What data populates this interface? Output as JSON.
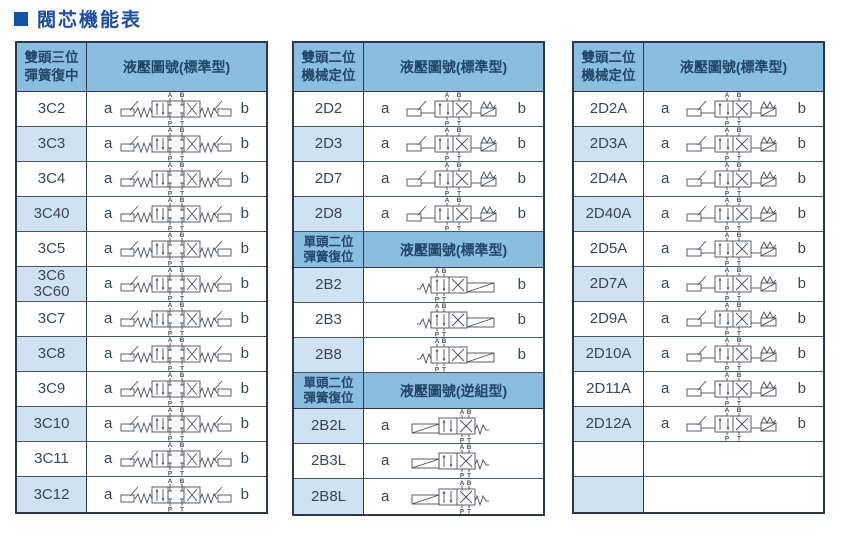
{
  "page_title": "閥芯機能表",
  "colors": {
    "title": "#1d4fa1",
    "title_bullet": "#1454a8",
    "header_bg": "#8abdde",
    "header_text": "#224667",
    "row_alt_bg": "#cfe2f1",
    "border_dark": "#2b3850",
    "grid_line": "#4a5668",
    "body_text": "#3d4754",
    "diagram_stroke": "#4a4f55"
  },
  "valve_ports": {
    "top": [
      "A",
      "B"
    ],
    "bottom": [
      "P",
      "T"
    ]
  },
  "tables": [
    {
      "name": "double-head-three-position-spring-centered",
      "sections": [
        {
          "header": {
            "col1_lines": [
              "雙頭三位",
              "彈簧復中"
            ],
            "col2": "液壓圖號(標準型)",
            "tall": true
          },
          "rows": [
            {
              "code_lines": [
                "3C2"
              ],
              "a": "a",
              "b": "b",
              "diagram": "3pos",
              "alt": false
            },
            {
              "code_lines": [
                "3C3"
              ],
              "a": "a",
              "b": "b",
              "diagram": "3pos",
              "alt": true
            },
            {
              "code_lines": [
                "3C4"
              ],
              "a": "a",
              "b": "b",
              "diagram": "3pos",
              "alt": false
            },
            {
              "code_lines": [
                "3C40"
              ],
              "a": "a",
              "b": "b",
              "diagram": "3pos",
              "alt": true
            },
            {
              "code_lines": [
                "3C5"
              ],
              "a": "a",
              "b": "b",
              "diagram": "3pos",
              "alt": false
            },
            {
              "code_lines": [
                "3C6",
                "3C60"
              ],
              "a": "a",
              "b": "b",
              "diagram": "3pos",
              "alt": true
            },
            {
              "code_lines": [
                "3C7"
              ],
              "a": "a",
              "b": "b",
              "diagram": "3pos",
              "alt": false
            },
            {
              "code_lines": [
                "3C8"
              ],
              "a": "a",
              "b": "b",
              "diagram": "3pos",
              "alt": true
            },
            {
              "code_lines": [
                "3C9"
              ],
              "a": "a",
              "b": "b",
              "diagram": "3pos",
              "alt": false
            },
            {
              "code_lines": [
                "3C10"
              ],
              "a": "a",
              "b": "b",
              "diagram": "3pos",
              "alt": true
            },
            {
              "code_lines": [
                "3C11"
              ],
              "a": "a",
              "b": "b",
              "diagram": "3pos",
              "alt": false
            },
            {
              "code_lines": [
                "3C12"
              ],
              "a": "a",
              "b": "b",
              "diagram": "3pos",
              "alt": true
            }
          ]
        }
      ]
    },
    {
      "name": "double-head-two-position-and-single-head-spring-return",
      "sections": [
        {
          "header": {
            "col1_lines": [
              "雙頭二位",
              "機械定位"
            ],
            "col2": "液壓圖號(標準型)",
            "tall": true
          },
          "rows": [
            {
              "code_lines": [
                "2D2"
              ],
              "a": "a",
              "b": "b",
              "diagram": "2pos",
              "alt": false
            },
            {
              "code_lines": [
                "2D3"
              ],
              "a": "a",
              "b": "b",
              "diagram": "2pos",
              "alt": true
            },
            {
              "code_lines": [
                "2D7"
              ],
              "a": "a",
              "b": "b",
              "diagram": "2pos",
              "alt": false
            },
            {
              "code_lines": [
                "2D8"
              ],
              "a": "a",
              "b": "b",
              "diagram": "2pos",
              "alt": true
            }
          ]
        },
        {
          "header": {
            "col1_lines": [
              "單頭二位",
              "彈簧復位"
            ],
            "col2": "液壓圖號(標準型)",
            "tall": false
          },
          "rows": [
            {
              "code_lines": [
                "2B2"
              ],
              "a": "",
              "b": "b",
              "diagram": "2b",
              "alt": true
            },
            {
              "code_lines": [
                "2B3"
              ],
              "a": "",
              "b": "b",
              "diagram": "2b",
              "alt": false
            },
            {
              "code_lines": [
                "2B8"
              ],
              "a": "",
              "b": "b",
              "diagram": "2b",
              "alt": true
            }
          ]
        },
        {
          "header": {
            "col1_lines": [
              "單頭二位",
              "彈簧復位"
            ],
            "col2": "液壓圖號(逆組型)",
            "tall": false
          },
          "rows": [
            {
              "code_lines": [
                "2B2L"
              ],
              "a": "a",
              "b": "",
              "diagram": "2bl",
              "alt": true
            },
            {
              "code_lines": [
                "2B3L"
              ],
              "a": "a",
              "b": "",
              "diagram": "2bl",
              "alt": false
            },
            {
              "code_lines": [
                "2B8L"
              ],
              "a": "a",
              "b": "",
              "diagram": "2bl",
              "alt": true
            }
          ]
        }
      ]
    },
    {
      "name": "double-head-two-position-detent-a-series",
      "sections": [
        {
          "header": {
            "col1_lines": [
              "雙頭二位",
              "機械定位"
            ],
            "col2": "液壓圖號(標準型)",
            "tall": true
          },
          "rows": [
            {
              "code_lines": [
                "2D2A"
              ],
              "a": "a",
              "b": "b",
              "diagram": "2pos",
              "alt": false
            },
            {
              "code_lines": [
                "2D3A"
              ],
              "a": "a",
              "b": "b",
              "diagram": "2pos",
              "alt": true
            },
            {
              "code_lines": [
                "2D4A"
              ],
              "a": "a",
              "b": "b",
              "diagram": "2pos",
              "alt": false
            },
            {
              "code_lines": [
                "2D40A"
              ],
              "a": "a",
              "b": "b",
              "diagram": "2pos",
              "alt": true
            },
            {
              "code_lines": [
                "2D5A"
              ],
              "a": "a",
              "b": "b",
              "diagram": "2pos",
              "alt": false
            },
            {
              "code_lines": [
                "2D7A"
              ],
              "a": "a",
              "b": "b",
              "diagram": "2pos",
              "alt": true
            },
            {
              "code_lines": [
                "2D9A"
              ],
              "a": "a",
              "b": "b",
              "diagram": "2pos",
              "alt": false
            },
            {
              "code_lines": [
                "2D10A"
              ],
              "a": "a",
              "b": "b",
              "diagram": "2pos",
              "alt": true
            },
            {
              "code_lines": [
                "2D11A"
              ],
              "a": "a",
              "b": "b",
              "diagram": "2pos",
              "alt": false
            },
            {
              "code_lines": [
                "2D12A"
              ],
              "a": "a",
              "b": "b",
              "diagram": "2pos",
              "alt": true
            },
            {
              "code_lines": [],
              "a": "",
              "b": "",
              "diagram": "none",
              "alt": false
            },
            {
              "code_lines": [],
              "a": "",
              "b": "",
              "diagram": "none",
              "alt": true
            }
          ]
        }
      ]
    }
  ]
}
